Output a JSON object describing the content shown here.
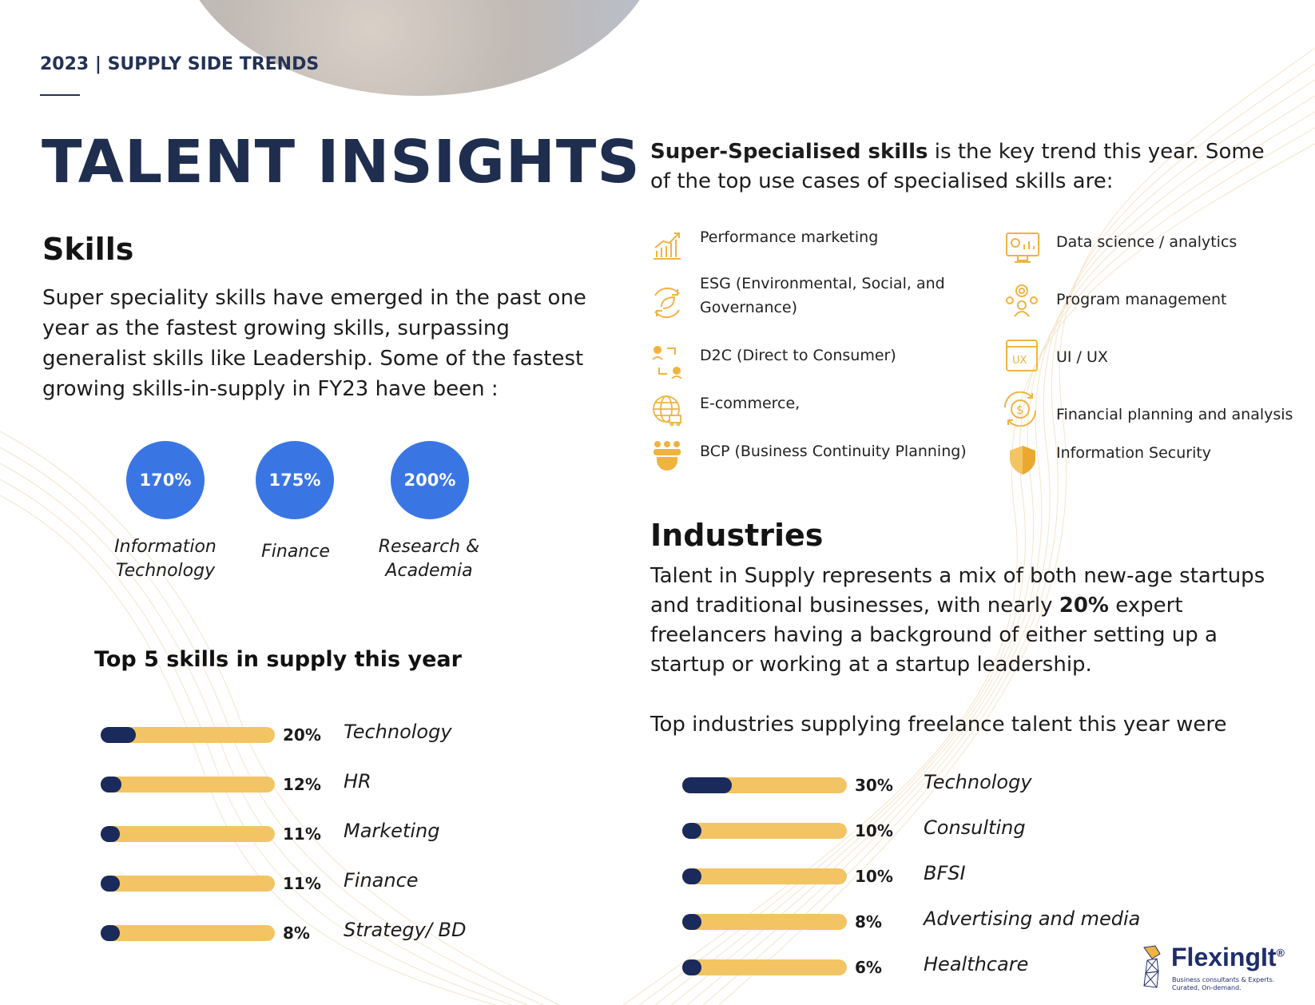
{
  "header": {
    "kicker": "2023 | SUPPLY SIDE TRENDS",
    "title": "TALENT INSIGHTS"
  },
  "skills": {
    "heading": "Skills",
    "paragraph": "Super speciality skills have emerged in the past one year as the fastest growing skills, surpassing generalist skills like Leadership. Some of the fastest growing skills-in-supply in FY23 have been :",
    "growth": [
      {
        "value": "170%",
        "label_line1": "Information",
        "label_line2": "Technology"
      },
      {
        "value": "175%",
        "label_line1": "Finance",
        "label_line2": ""
      },
      {
        "value": "200%",
        "label_line1": "Research &",
        "label_line2": "Academia"
      }
    ],
    "top5_heading": "Top 5 skills in supply this year"
  },
  "specialised": {
    "intro_bold": "Super-Specialised skills",
    "intro_rest": " is the key trend this year. Some of the top use cases of specialised skills are:",
    "left": [
      {
        "icon": "growth-chart-icon",
        "label": "Performance marketing"
      },
      {
        "icon": "eco-cycle-icon",
        "label": "ESG (Environmental, Social, and Governance)"
      },
      {
        "icon": "exchange-people-icon",
        "label": "D2C (Direct to Consumer)"
      },
      {
        "icon": "globe-cart-icon",
        "label": "E-commerce,"
      },
      {
        "icon": "team-shield-icon",
        "label": "BCP (Business Continuity Planning)"
      }
    ],
    "right": [
      {
        "icon": "dashboard-analytics-icon",
        "label": "Data science / analytics"
      },
      {
        "icon": "program-gear-person-icon",
        "label": "Program management"
      },
      {
        "icon": "ux-window-icon",
        "label": "UI / UX"
      },
      {
        "icon": "dollar-cycle-icon",
        "label": "Financial planning and analysis"
      },
      {
        "icon": "security-shield-icon",
        "label": "Information Security"
      }
    ]
  },
  "industries": {
    "heading": "Industries",
    "para_part1": "Talent in Supply represents a mix of both new-age startups and traditional businesses, with nearly ",
    "para_bold": "20%",
    "para_part2": " expert freelancers having a background of either setting up a startup or working at a startup leadership.",
    "top_text": "Top industries supplying freelance talent this year were"
  },
  "chart_data": [
    {
      "type": "bar",
      "title": "Top 5 skills in supply this year",
      "categories": [
        "Technology",
        "HR",
        "Marketing",
        "Finance",
        "Strategy/ BD"
      ],
      "values": [
        20,
        12,
        11,
        11,
        8
      ],
      "value_labels": [
        "20%",
        "12%",
        "11%",
        "11%",
        "8%"
      ],
      "ylim": [
        0,
        100
      ],
      "colors": {
        "fill": "#1a2a5a",
        "track": "#f3c463"
      }
    },
    {
      "type": "bar",
      "title": "Top industries supplying freelance talent this year were",
      "categories": [
        "Technology",
        "Consulting",
        "BFSI",
        "Advertising and media",
        "Healthcare"
      ],
      "values": [
        30,
        10,
        10,
        8,
        6
      ],
      "value_labels": [
        "30%",
        "10%",
        "10%",
        "8%",
        "6%"
      ],
      "ylim": [
        0,
        100
      ],
      "colors": {
        "fill": "#1a2a5a",
        "track": "#f3c463"
      }
    }
  ],
  "logo": {
    "name": "FlexingIt",
    "mark": "®",
    "tagline_1": "Business consultants & Experts.",
    "tagline_2": "Curated, On-demand."
  },
  "colors": {
    "navy": "#1f2d4f",
    "blue": "#3a76e3",
    "gold": "#f3c463",
    "bar_fill": "#1a2a5a"
  }
}
